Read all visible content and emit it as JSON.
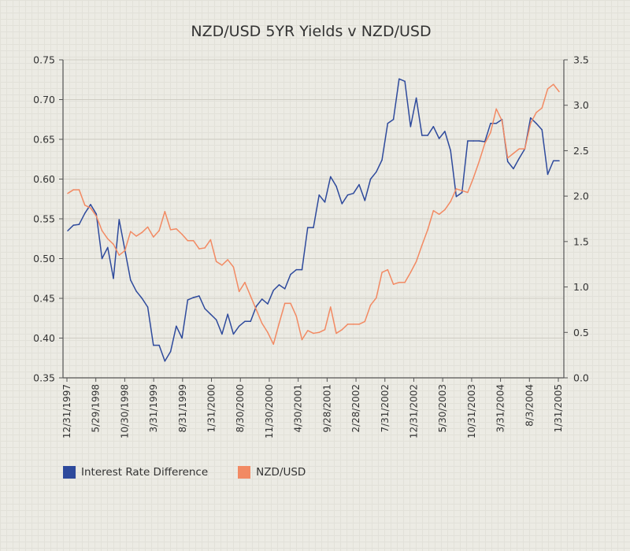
{
  "chart_data": {
    "type": "line",
    "title": "NZD/USD 5YR Yields v NZD/USD",
    "xlabel": "",
    "ylabel_left": "",
    "ylabel_right": "",
    "x_tick_labels": [
      "12/31/1997",
      "5/29/1998",
      "10/30/1998",
      "3/31/1999",
      "8/31/1999",
      "1/31/2000",
      "8/30/2000",
      "11/30/2000",
      "4/30/2001",
      "9/28/2001",
      "2/28/2002",
      "7/31/2002",
      "12/31/2002",
      "5/30/2003",
      "10/31/2003",
      "3/31/2004",
      "8/3/2004",
      "1/31/2005"
    ],
    "y_left": {
      "min": 0.35,
      "max": 0.75,
      "ticks": [
        "0.35",
        "0.40",
        "0.45",
        "0.50",
        "0.55",
        "0.60",
        "0.65",
        "0.70",
        "0.75"
      ]
    },
    "y_right": {
      "min": 0.0,
      "max": 3.5,
      "ticks": [
        "0.0",
        "0.5",
        "1.0",
        "1.5",
        "2.0",
        "2.5",
        "3.0",
        "3.5"
      ]
    },
    "n_points": 87,
    "grid": true,
    "legend_position": "bottom-left",
    "series": [
      {
        "name": "Interest Rate Difference",
        "axis": "left",
        "color": "#2e4a9c",
        "values": [
          0.535,
          0.542,
          0.543,
          0.557,
          0.568,
          0.556,
          0.5,
          0.514,
          0.475,
          0.549,
          0.511,
          0.473,
          0.459,
          0.45,
          0.439,
          0.391,
          0.391,
          0.371,
          0.383,
          0.415,
          0.4,
          0.448,
          0.451,
          0.453,
          0.437,
          0.43,
          0.423,
          0.405,
          0.43,
          0.405,
          0.415,
          0.421,
          0.421,
          0.44,
          0.449,
          0.443,
          0.46,
          0.467,
          0.462,
          0.48,
          0.486,
          0.486,
          0.539,
          0.539,
          0.58,
          0.571,
          0.603,
          0.591,
          0.569,
          0.58,
          0.582,
          0.593,
          0.573,
          0.6,
          0.609,
          0.624,
          0.67,
          0.675,
          0.726,
          0.723,
          0.666,
          0.702,
          0.655,
          0.655,
          0.666,
          0.651,
          0.66,
          0.636,
          0.578,
          0.583,
          0.648,
          0.648,
          0.648,
          0.647,
          0.67,
          0.67,
          0.675,
          0.622,
          0.613,
          0.626,
          0.638,
          0.677,
          0.67,
          0.662,
          0.606,
          0.623,
          0.623
        ]
      },
      {
        "name": "NZD/USD",
        "axis": "right",
        "color": "#f28a63",
        "values": [
          2.03,
          2.07,
          2.07,
          1.9,
          1.87,
          1.78,
          1.62,
          1.53,
          1.47,
          1.35,
          1.4,
          1.61,
          1.56,
          1.6,
          1.66,
          1.55,
          1.62,
          1.83,
          1.63,
          1.64,
          1.58,
          1.51,
          1.51,
          1.42,
          1.43,
          1.52,
          1.28,
          1.24,
          1.3,
          1.22,
          0.95,
          1.05,
          0.9,
          0.75,
          0.6,
          0.5,
          0.37,
          0.6,
          0.82,
          0.82,
          0.68,
          0.42,
          0.52,
          0.49,
          0.5,
          0.53,
          0.78,
          0.49,
          0.53,
          0.59,
          0.59,
          0.59,
          0.62,
          0.8,
          0.88,
          1.16,
          1.19,
          1.03,
          1.05,
          1.05,
          1.16,
          1.28,
          1.46,
          1.63,
          1.84,
          1.8,
          1.85,
          1.94,
          2.08,
          2.06,
          2.04,
          2.2,
          2.38,
          2.58,
          2.7,
          2.96,
          2.83,
          2.42,
          2.47,
          2.52,
          2.52,
          2.8,
          2.92,
          2.97,
          3.18,
          3.23,
          3.15
        ]
      }
    ]
  }
}
